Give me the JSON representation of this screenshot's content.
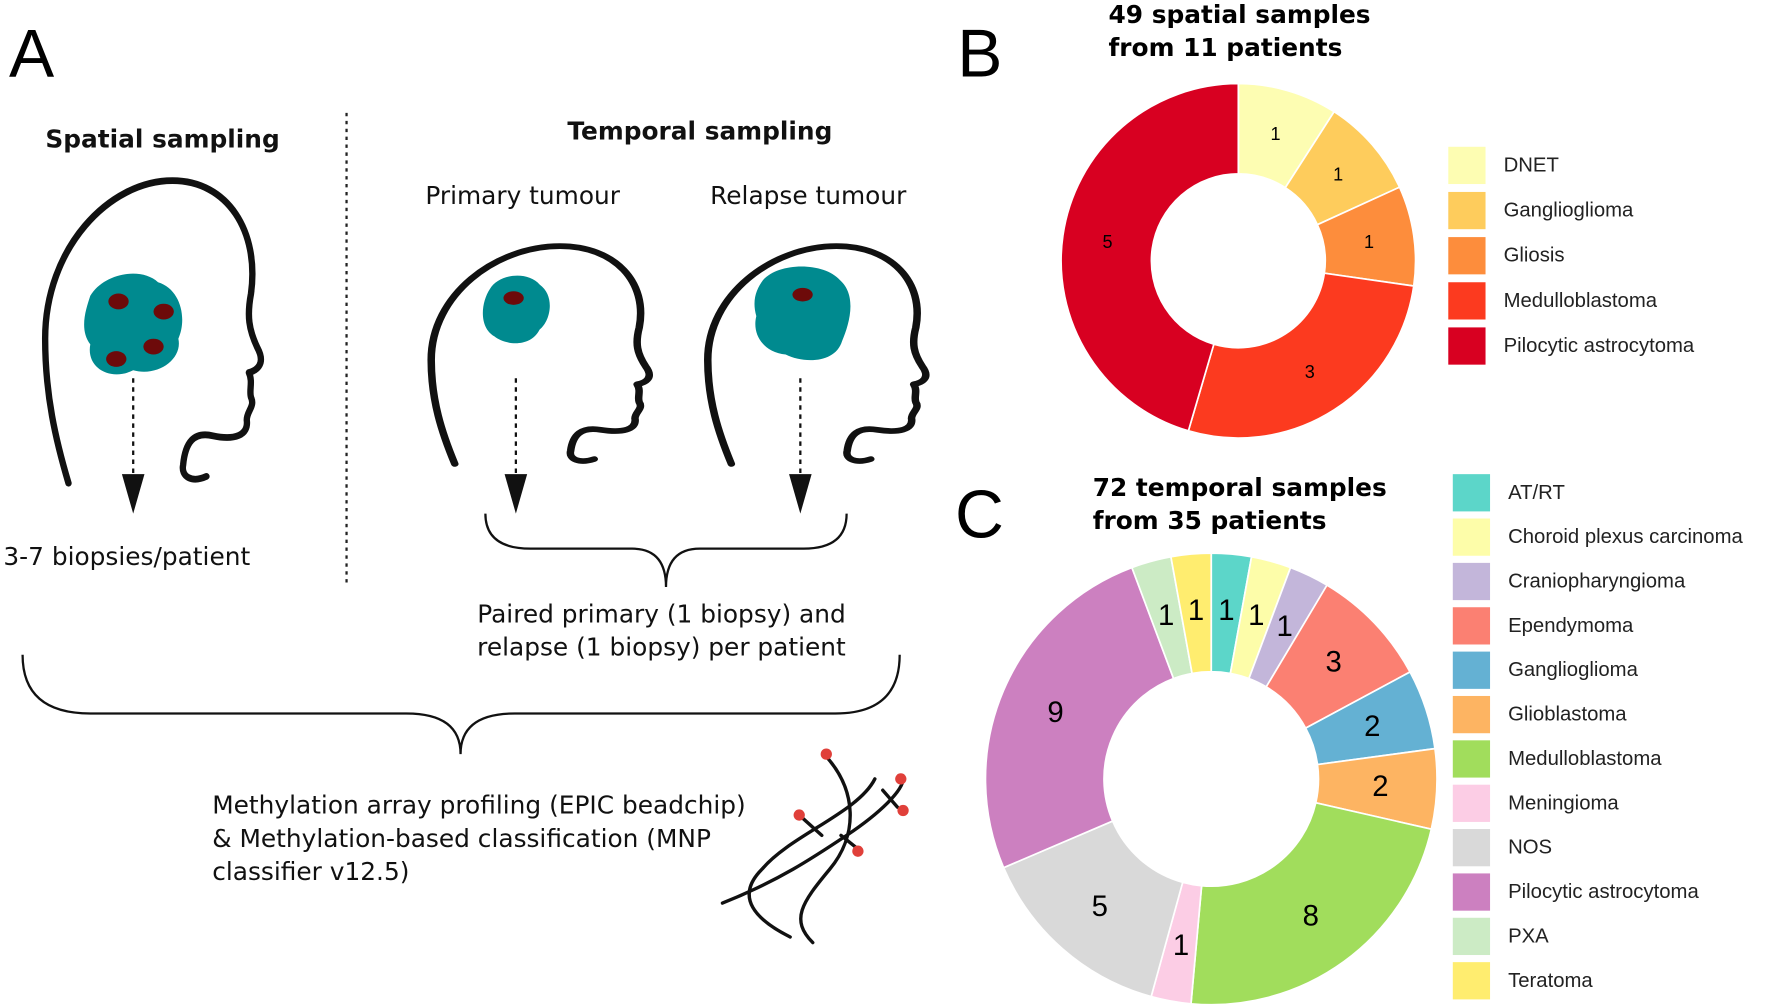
{
  "diagram": {
    "panel_labels": [
      "A",
      "B",
      "C"
    ],
    "spatial": {
      "title": "Spatial sampling",
      "note": "3-7 biopsies/patient"
    },
    "temporal": {
      "title": "Temporal sampling",
      "primary": "Primary tumour",
      "relapse": "Relapse tumour",
      "note": [
        "Paired primary (1 biopsy) and",
        "relapse (1 biopsy) per patient"
      ]
    },
    "profiling": [
      "Methylation array profiling (EPIC beadchip)",
      "& Methylation-based classification (MNP",
      "classifier v12.5)"
    ]
  },
  "chart_data": [
    {
      "type": "donut",
      "title": [
        "49 spatial samples",
        "from 11 patients"
      ],
      "categories": [
        "DNET",
        "Ganglioglioma",
        "Gliosis",
        "Medulloblastoma",
        "Pilocytic astrocytoma"
      ],
      "values": [
        1,
        1,
        1,
        3,
        5
      ],
      "colors": [
        "#fdfdb2",
        "#fecc5c",
        "#fd8d3c",
        "#fc3a1f",
        "#d80021"
      ]
    },
    {
      "type": "donut",
      "title": [
        "72 temporal samples",
        "from 35 patients"
      ],
      "categories": [
        "AT/RT",
        "Choroid plexus carcinoma",
        "Craniopharyngioma",
        "Ependymoma",
        "Ganglioglioma",
        "Glioblastoma",
        "Medulloblastoma",
        "Meningioma",
        "NOS",
        "Pilocytic astrocytoma",
        "PXA",
        "Teratoma"
      ],
      "values": [
        1,
        1,
        1,
        3,
        2,
        2,
        8,
        1,
        5,
        9,
        1,
        1
      ],
      "colors": [
        "#5cd6c9",
        "#fdfda9",
        "#c3b6da",
        "#fb8072",
        "#64b1d3",
        "#fdb462",
        "#a1dd5c",
        "#fccde5",
        "#d9d9d9",
        "#cc80c0",
        "#ccebc5",
        "#ffed6f"
      ]
    }
  ]
}
